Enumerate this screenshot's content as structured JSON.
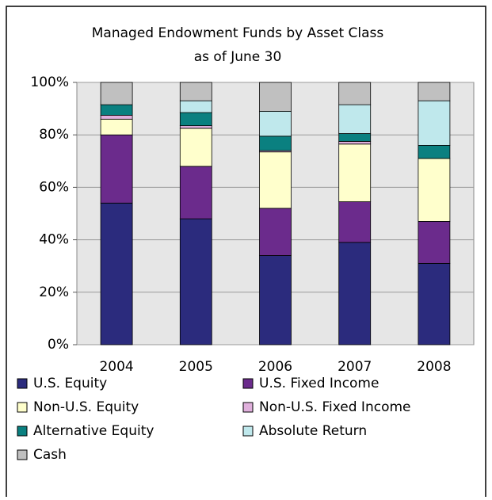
{
  "chart_data": {
    "type": "stacked-bar",
    "title": "Managed Endowment Funds by Asset Class",
    "subtitle": "as of June 30",
    "categories": [
      "2004",
      "2005",
      "2006",
      "2007",
      "2008"
    ],
    "series": [
      {
        "name": "U.S. Equity",
        "color": "#2b2b7d",
        "values": [
          54,
          48,
          34,
          39,
          31
        ]
      },
      {
        "name": "U.S. Fixed Income",
        "color": "#6b2b8c",
        "values": [
          26,
          20,
          18,
          15.5,
          16
        ]
      },
      {
        "name": "Non-U.S. Equity",
        "color": "#ffffcc",
        "values": [
          6,
          14.5,
          21.5,
          22,
          24
        ]
      },
      {
        "name": "Non-U.S. Fixed Income",
        "color": "#e0b0dc",
        "values": [
          1.5,
          1,
          0.5,
          1,
          0
        ]
      },
      {
        "name": "Alternative Equity",
        "color": "#0a8080",
        "values": [
          4,
          5,
          5.5,
          3,
          5
        ]
      },
      {
        "name": "Absolute Return",
        "color": "#bfe8ec",
        "values": [
          0,
          4.5,
          9.5,
          11,
          17
        ]
      },
      {
        "name": "Cash",
        "color": "#c0c0c0",
        "values": [
          8.5,
          7,
          11,
          8.5,
          7
        ]
      }
    ],
    "ylim": [
      0,
      100
    ],
    "yticks": [
      {
        "value": 0,
        "label": "0%"
      },
      {
        "value": 20,
        "label": "20%"
      },
      {
        "value": 40,
        "label": "40%"
      },
      {
        "value": 60,
        "label": "60%"
      },
      {
        "value": 80,
        "label": "80%"
      },
      {
        "value": 100,
        "label": "100%"
      }
    ],
    "grid": true
  }
}
